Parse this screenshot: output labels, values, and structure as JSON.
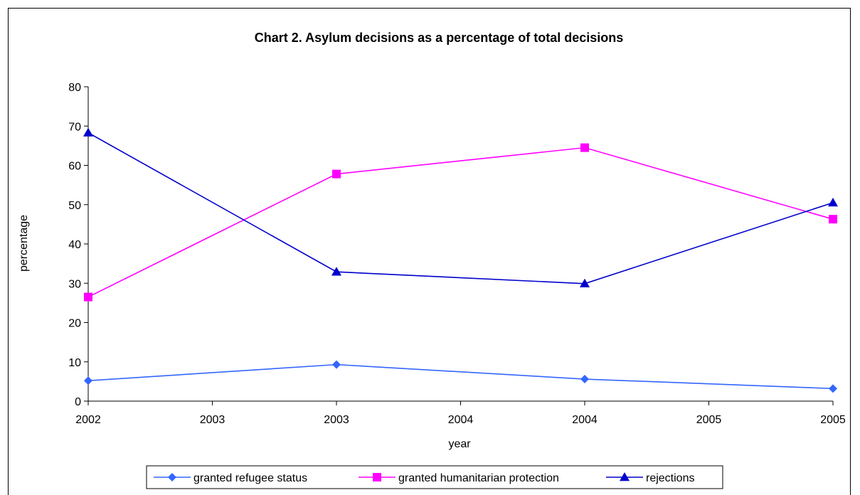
{
  "chart_data": {
    "type": "line",
    "title": "Chart 2. Asylum decisions as a percentage of total decisions",
    "xlabel": "year",
    "ylabel": "percentage",
    "x_tick_labels": [
      "2002",
      "2003",
      "2003",
      "2004",
      "2004",
      "2005",
      "2005"
    ],
    "x_points": [
      "2002",
      "2003",
      "2004",
      "2005"
    ],
    "ylim": [
      0,
      80
    ],
    "y_ticks": [
      0,
      10,
      20,
      30,
      40,
      50,
      60,
      70,
      80
    ],
    "grid": false,
    "legend_position": "bottom",
    "series": [
      {
        "name": "granted refugee status",
        "color": "#3366ff",
        "marker": "diamond",
        "values": [
          5.2,
          9.3,
          5.6,
          3.2
        ]
      },
      {
        "name": "granted humanitarian protection",
        "color": "#ff00ff",
        "marker": "square",
        "values": [
          26.5,
          57.8,
          64.5,
          46.3
        ]
      },
      {
        "name": "rejections",
        "color": "#0000cc",
        "marker": "triangle",
        "values": [
          68.3,
          32.9,
          29.9,
          50.5
        ]
      }
    ]
  }
}
